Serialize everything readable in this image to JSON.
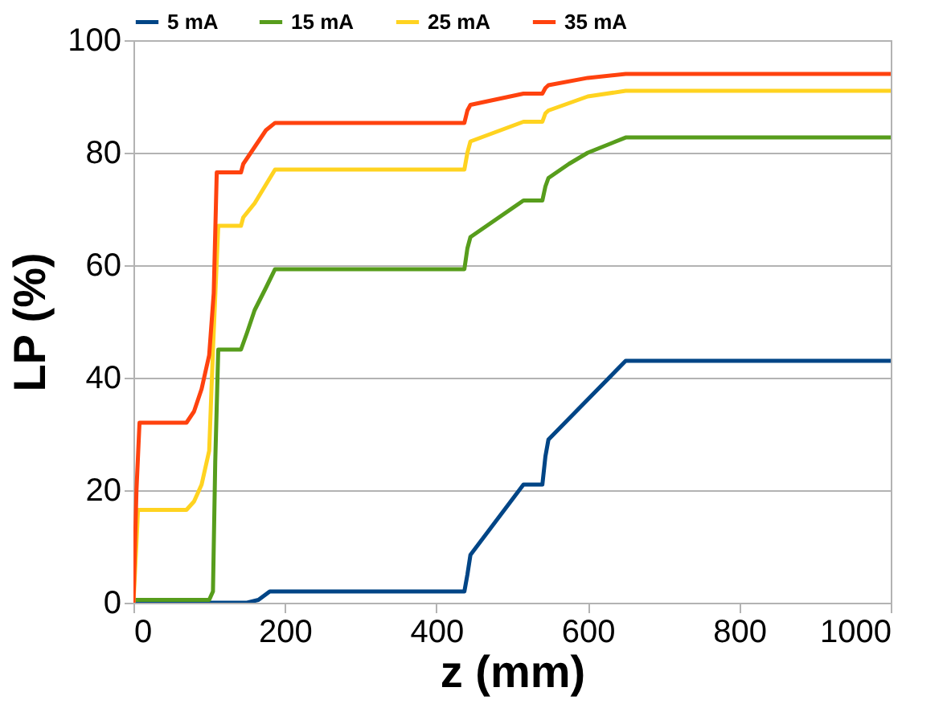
{
  "chart_data": {
    "type": "line",
    "xlabel": "z (mm)",
    "ylabel": "LP (%)",
    "xlim": [
      0,
      1000
    ],
    "xticks": [
      0,
      200,
      400,
      600,
      800,
      1000
    ],
    "ylim": [
      0,
      100
    ],
    "yticks": [
      0,
      20,
      40,
      60,
      80,
      100
    ],
    "grid": "y",
    "legend": "top",
    "marker": "none",
    "line_style": "solid",
    "series": [
      {
        "name": "5 mA",
        "color": "#004586",
        "x": [
          0,
          150,
          165,
          175,
          180,
          437,
          441,
          445,
          515,
          540,
          544,
          548,
          650,
          1000
        ],
        "values": [
          0,
          0,
          0.5,
          1.5,
          2,
          2,
          5,
          8.5,
          21,
          21,
          26,
          29,
          43,
          43
        ]
      },
      {
        "name": "15 mA",
        "color": "#579d1c",
        "x": [
          0,
          100,
          105,
          108,
          112,
          142,
          150,
          160,
          175,
          187,
          437,
          441,
          445,
          515,
          540,
          544,
          548,
          575,
          600,
          650,
          1000
        ],
        "values": [
          0.5,
          0.5,
          2,
          25,
          45,
          45,
          48,
          52,
          56,
          59.3,
          59.3,
          63,
          65,
          71.5,
          71.5,
          74,
          75.5,
          78,
          80,
          82.7,
          82.7
        ]
      },
      {
        "name": "25 mA",
        "color": "#ffd320",
        "x": [
          0,
          3,
          6,
          70,
          80,
          90,
          100,
          105,
          112,
          142,
          145,
          160,
          187,
          437,
          441,
          445,
          515,
          540,
          544,
          548,
          600,
          650,
          1000
        ],
        "values": [
          0,
          8,
          16.5,
          16.5,
          18,
          21,
          27,
          45,
          67,
          67,
          68.5,
          71,
          77,
          77,
          80,
          82,
          85.5,
          85.5,
          87,
          87.5,
          90,
          91,
          91
        ]
      },
      {
        "name": "35 mA",
        "color": "#ff420e",
        "x": [
          0,
          4,
          8,
          70,
          80,
          90,
          100,
          106,
          110,
          142,
          145,
          160,
          175,
          187,
          437,
          441,
          445,
          515,
          540,
          544,
          548,
          600,
          650,
          1000
        ],
        "values": [
          0,
          20,
          32,
          32,
          34,
          38,
          44,
          55,
          76.5,
          76.5,
          78,
          81,
          84,
          85.3,
          85.3,
          87.5,
          88.5,
          90.5,
          90.5,
          91.5,
          92,
          93.3,
          94,
          94
        ]
      }
    ]
  }
}
